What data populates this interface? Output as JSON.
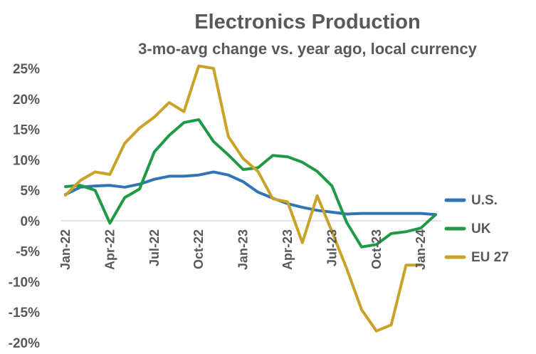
{
  "colors": {
    "title": "#595959",
    "us": "#2E75B6",
    "uk": "#1E9A46",
    "eu": "#C9A227",
    "zero_line": "#d9d9d9"
  },
  "chart_data": {
    "type": "line",
    "title": "Electronics Production",
    "subtitle": "3-mo-avg change vs. year ago, local currency",
    "x": [
      "Jan-22",
      "Feb-22",
      "Mar-22",
      "Apr-22",
      "May-22",
      "Jun-22",
      "Jul-22",
      "Aug-22",
      "Sep-22",
      "Oct-22",
      "Nov-22",
      "Dec-22",
      "Jan-23",
      "Feb-23",
      "Mar-23",
      "Apr-23",
      "May-23",
      "Jun-23",
      "Jul-23",
      "Aug-23",
      "Sep-23",
      "Oct-23",
      "Nov-23",
      "Dec-23",
      "Jan-24",
      "Feb-24"
    ],
    "xticks": [
      "Jan-22",
      "Apr-22",
      "Jul-22",
      "Oct-22",
      "Jan-23",
      "Apr-23",
      "Jul-23",
      "Oct-23",
      "Jan-24"
    ],
    "ylim": [
      -0.2,
      0.25
    ],
    "yticks": [
      {
        "value": 0.25,
        "label": "25%"
      },
      {
        "value": 0.2,
        "label": "20%"
      },
      {
        "value": 0.15,
        "label": "15%"
      },
      {
        "value": 0.1,
        "label": "10%"
      },
      {
        "value": 0.05,
        "label": "5%"
      },
      {
        "value": 0.0,
        "label": "0%"
      },
      {
        "value": -0.05,
        "label": "-5%"
      },
      {
        "value": -0.1,
        "label": "-10%"
      },
      {
        "value": -0.15,
        "label": "-15%"
      },
      {
        "value": -0.2,
        "label": "-20%"
      }
    ],
    "legend_position": "right",
    "series": [
      {
        "key": "us",
        "name": "U.S.",
        "values": [
          0.043,
          0.055,
          0.057,
          0.058,
          0.055,
          0.06,
          0.068,
          0.073,
          0.073,
          0.075,
          0.08,
          0.075,
          0.064,
          0.047,
          0.037,
          0.028,
          0.022,
          0.017,
          0.014,
          0.011,
          0.012,
          0.012,
          0.012,
          0.012,
          0.012,
          0.01
        ]
      },
      {
        "key": "uk",
        "name": "UK",
        "values": [
          0.056,
          0.058,
          0.05,
          -0.004,
          0.038,
          0.052,
          0.113,
          0.14,
          0.161,
          0.166,
          0.13,
          0.108,
          0.084,
          0.087,
          0.107,
          0.105,
          0.096,
          0.081,
          0.057,
          -0.003,
          -0.043,
          -0.039,
          -0.021,
          -0.018,
          -0.012,
          0.01
        ]
      },
      {
        "key": "eu",
        "name": "EU 27",
        "values": [
          0.042,
          0.066,
          0.08,
          0.076,
          0.127,
          0.152,
          0.17,
          0.194,
          0.179,
          0.254,
          0.25,
          0.138,
          0.102,
          0.081,
          0.036,
          0.031,
          -0.036,
          0.041,
          -0.018,
          -0.079,
          -0.146,
          -0.181,
          -0.171,
          -0.073,
          -0.073,
          null
        ]
      }
    ]
  }
}
